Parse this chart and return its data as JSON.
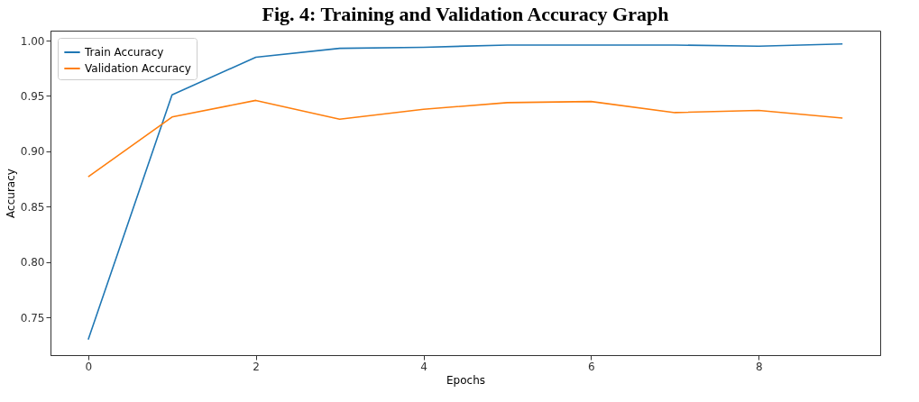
{
  "chart_data": {
    "type": "line",
    "title": "Fig. 4: Training and Validation Accuracy Graph",
    "xlabel": "Epochs",
    "ylabel": "Accuracy",
    "x": [
      0,
      1,
      2,
      3,
      4,
      5,
      6,
      7,
      8,
      9
    ],
    "series": [
      {
        "name": "Train Accuracy",
        "color": "#1f77b4",
        "values": [
          0.73,
          0.951,
          0.985,
          0.993,
          0.994,
          0.996,
          0.996,
          0.996,
          0.995,
          0.997
        ]
      },
      {
        "name": "Validation Accuracy",
        "color": "#ff7f0e",
        "values": [
          0.877,
          0.931,
          0.946,
          0.929,
          0.938,
          0.944,
          0.945,
          0.935,
          0.937,
          0.93
        ]
      }
    ],
    "xlim": [
      -0.45,
      9.45
    ],
    "ylim": [
      0.716,
      1.009
    ],
    "xticks": [
      0,
      2,
      4,
      6,
      8
    ],
    "yticks": [
      0.75,
      {
        "value": 0.8,
        "label": "0.80"
      },
      0.85,
      {
        "value": 0.9,
        "label": "0.90"
      },
      0.95,
      {
        "value": 1,
        "label": "1.00"
      }
    ],
    "legend": "top left",
    "grid": false,
    "marker": "none",
    "line_style": "solid"
  }
}
